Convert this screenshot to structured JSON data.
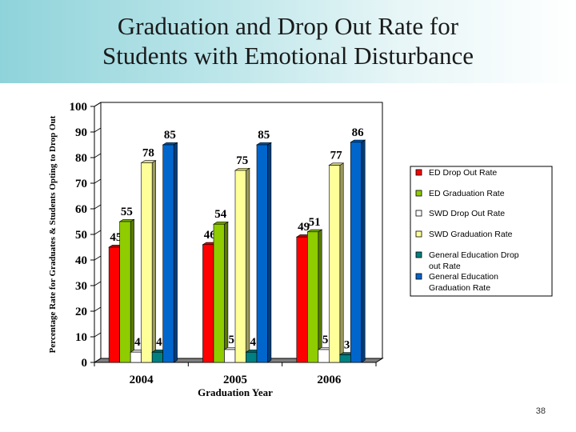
{
  "slide": {
    "title_line1": "Graduation and Drop Out Rate for",
    "title_line2": "Students with Emotional Disturbance",
    "page_number": "38"
  },
  "chart_data": {
    "type": "bar",
    "categories": [
      "2004",
      "2005",
      "2006"
    ],
    "xlabel": "Graduation Year",
    "ylabel": "Percentage Rate for Graduates & Students Opting to Drop Out",
    "ylim": [
      0,
      100
    ],
    "yticks": [
      0,
      10,
      20,
      30,
      40,
      50,
      60,
      70,
      80,
      90,
      100
    ],
    "grid": false,
    "legend_position": "right",
    "series": [
      {
        "name": "ED Drop Out Rate",
        "values": [
          45,
          46,
          49
        ],
        "color": "#ff0000"
      },
      {
        "name": "ED Graduation Rate",
        "values": [
          55,
          54,
          51
        ],
        "color": "#8fcc00"
      },
      {
        "name": "SWD Drop Out Rate",
        "values": [
          4,
          5,
          5
        ],
        "color": "#ffffff"
      },
      {
        "name": "SWD Graduation Rate",
        "values": [
          78,
          75,
          77
        ],
        "color": "#ffff99"
      },
      {
        "name": "General Education Drop out Rate",
        "values": [
          4,
          4,
          3
        ],
        "color": "#008080"
      },
      {
        "name": "General Education Graduation Rate",
        "values": [
          85,
          85,
          86
        ],
        "color": "#0066cc"
      }
    ]
  }
}
